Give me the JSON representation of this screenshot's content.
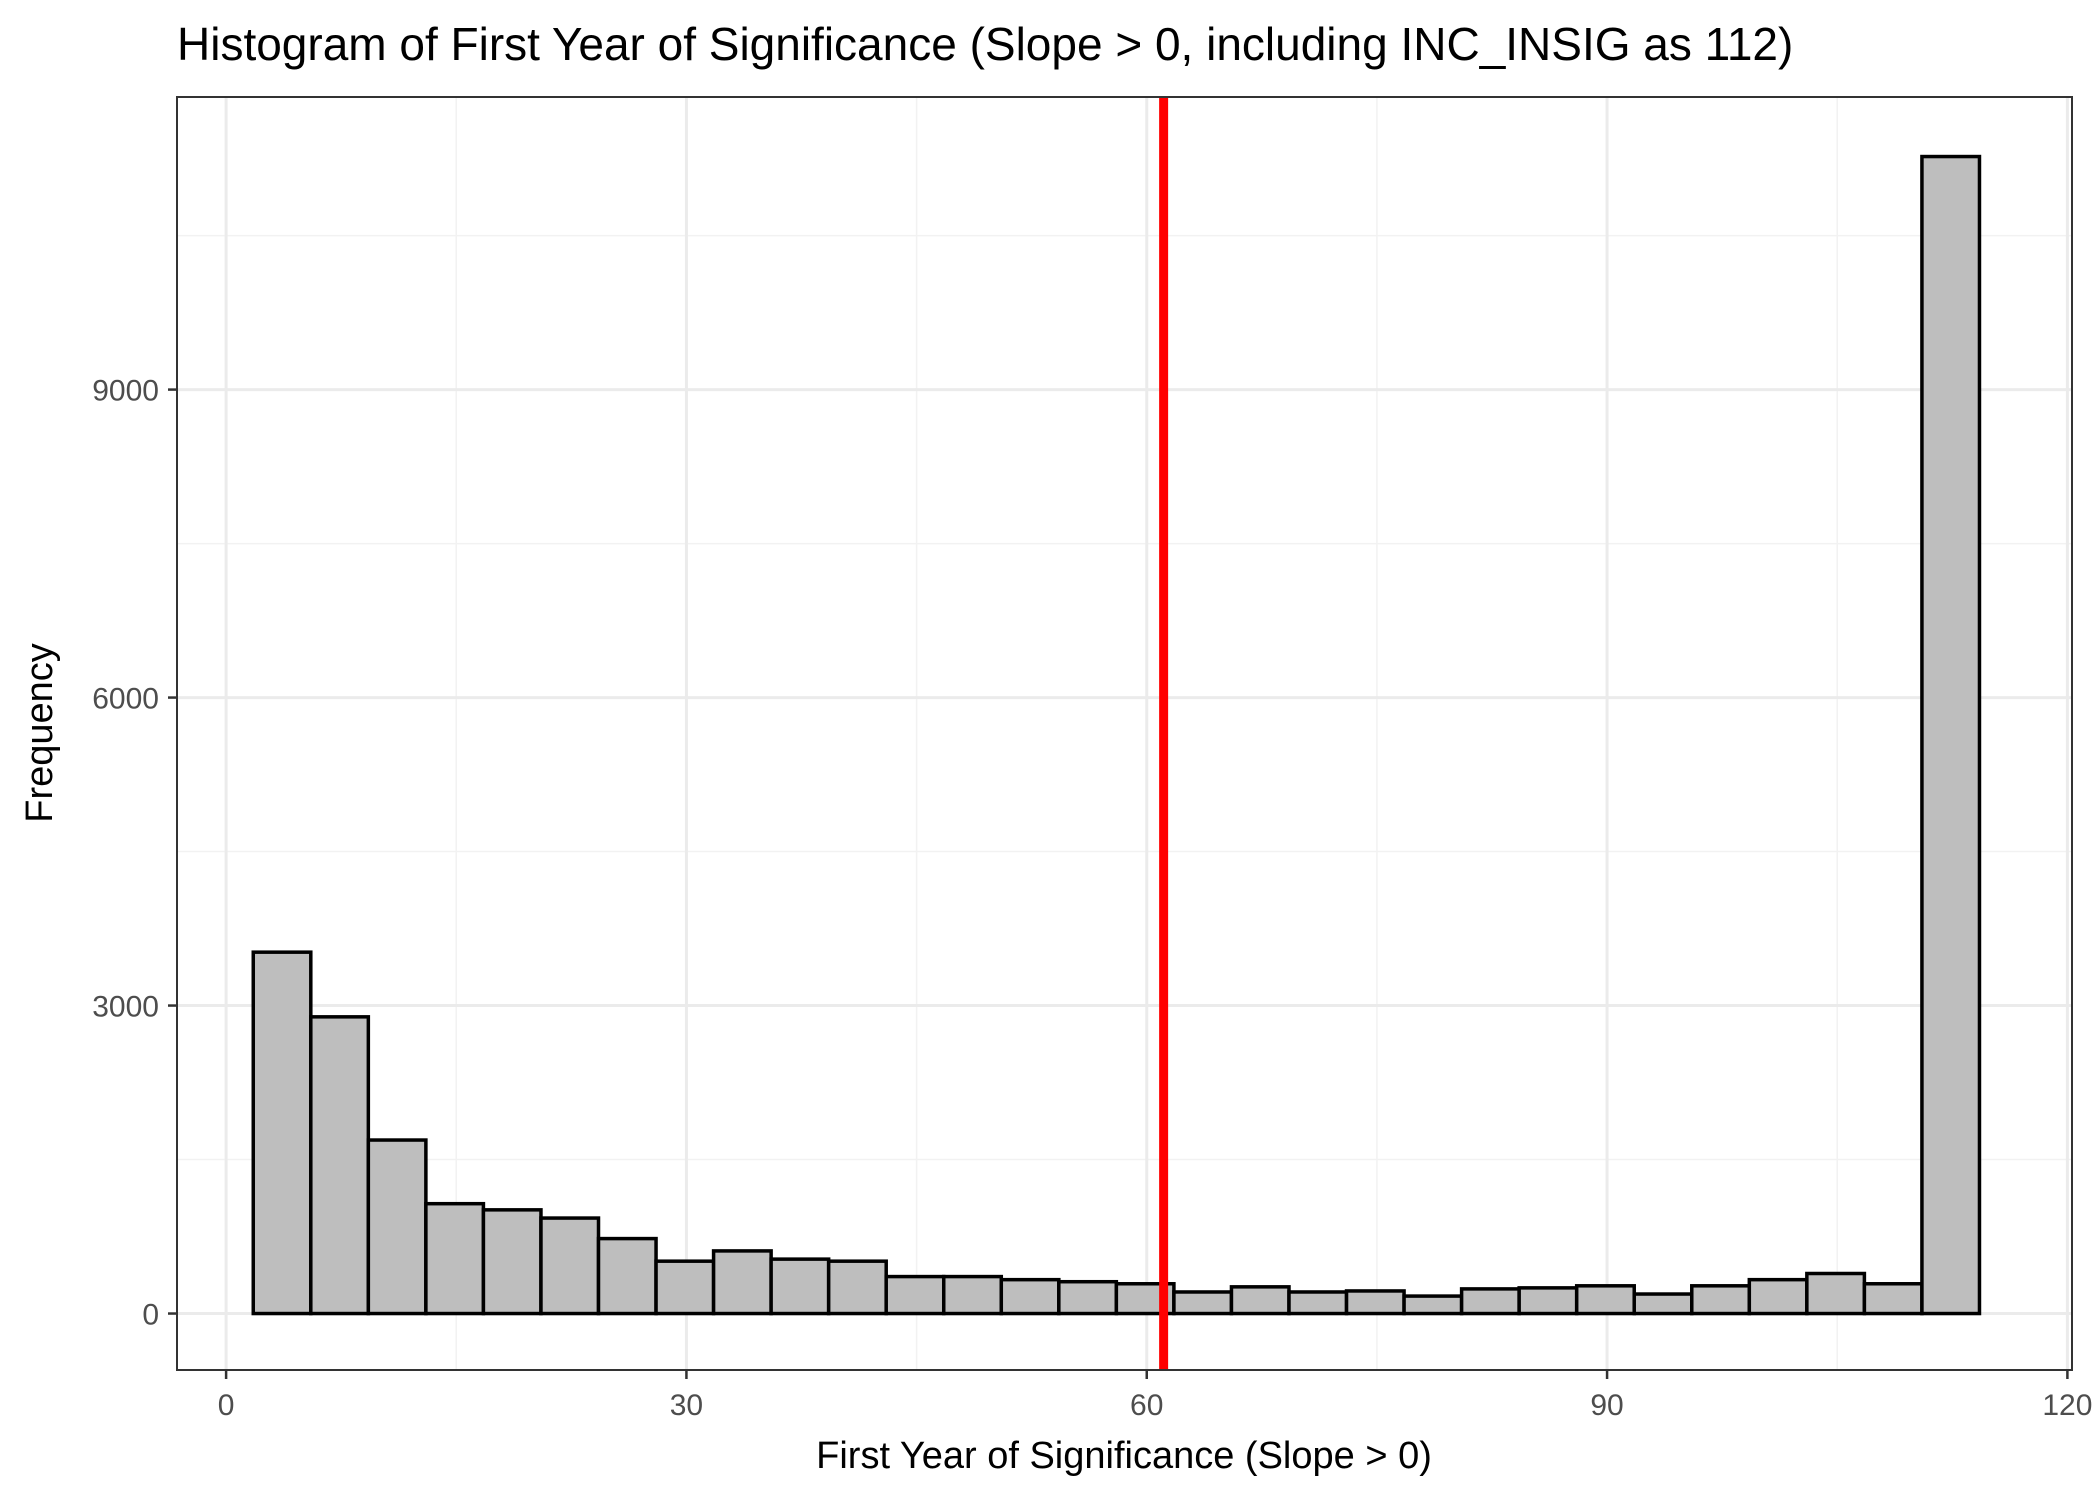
{
  "chart_data": {
    "type": "bar",
    "title": "Histogram of First Year of Significance (Slope > 0, including INC_INSIG as 112)",
    "xlabel": "First Year of Significance (Slope > 0)",
    "ylabel": "Frequency",
    "xlim": [
      -3.2,
      120.3
    ],
    "ylim": [
      -550,
      11850
    ],
    "x_ticks": [
      0,
      30,
      60,
      90,
      120
    ],
    "y_ticks": [
      0,
      3000,
      6000,
      9000
    ],
    "bins": [
      {
        "x0": 1.77,
        "x1": 5.52,
        "value": 3520
      },
      {
        "x0": 5.52,
        "x1": 9.27,
        "value": 2890
      },
      {
        "x0": 9.27,
        "x1": 13.02,
        "value": 1690
      },
      {
        "x0": 13.02,
        "x1": 16.77,
        "value": 1070
      },
      {
        "x0": 16.77,
        "x1": 20.52,
        "value": 1010
      },
      {
        "x0": 20.52,
        "x1": 24.27,
        "value": 930
      },
      {
        "x0": 24.27,
        "x1": 28.02,
        "value": 730
      },
      {
        "x0": 28.02,
        "x1": 31.77,
        "value": 510
      },
      {
        "x0": 31.77,
        "x1": 35.52,
        "value": 610
      },
      {
        "x0": 35.52,
        "x1": 39.27,
        "value": 530
      },
      {
        "x0": 39.27,
        "x1": 43.02,
        "value": 510
      },
      {
        "x0": 43.02,
        "x1": 46.77,
        "value": 360
      },
      {
        "x0": 46.77,
        "x1": 50.52,
        "value": 360
      },
      {
        "x0": 50.52,
        "x1": 54.27,
        "value": 330
      },
      {
        "x0": 54.27,
        "x1": 58.02,
        "value": 310
      },
      {
        "x0": 58.02,
        "x1": 61.77,
        "value": 290
      },
      {
        "x0": 61.77,
        "x1": 65.52,
        "value": 210
      },
      {
        "x0": 65.52,
        "x1": 69.27,
        "value": 260
      },
      {
        "x0": 69.27,
        "x1": 73.02,
        "value": 210
      },
      {
        "x0": 73.02,
        "x1": 76.77,
        "value": 220
      },
      {
        "x0": 76.77,
        "x1": 80.52,
        "value": 170
      },
      {
        "x0": 80.52,
        "x1": 84.27,
        "value": 240
      },
      {
        "x0": 84.27,
        "x1": 88.02,
        "value": 250
      },
      {
        "x0": 88.02,
        "x1": 91.77,
        "value": 270
      },
      {
        "x0": 91.77,
        "x1": 95.52,
        "value": 190
      },
      {
        "x0": 95.52,
        "x1": 99.27,
        "value": 270
      },
      {
        "x0": 99.27,
        "x1": 103.02,
        "value": 330
      },
      {
        "x0": 103.02,
        "x1": 106.77,
        "value": 390
      },
      {
        "x0": 106.77,
        "x1": 110.52,
        "value": 290
      },
      {
        "x0": 110.52,
        "x1": 114.27,
        "value": 11270
      }
    ],
    "vline": {
      "x": 61.1,
      "color": "#ff0000"
    },
    "bar_fill": "#bebebe",
    "bar_stroke": "#000000",
    "grid": true,
    "legend": "none"
  }
}
